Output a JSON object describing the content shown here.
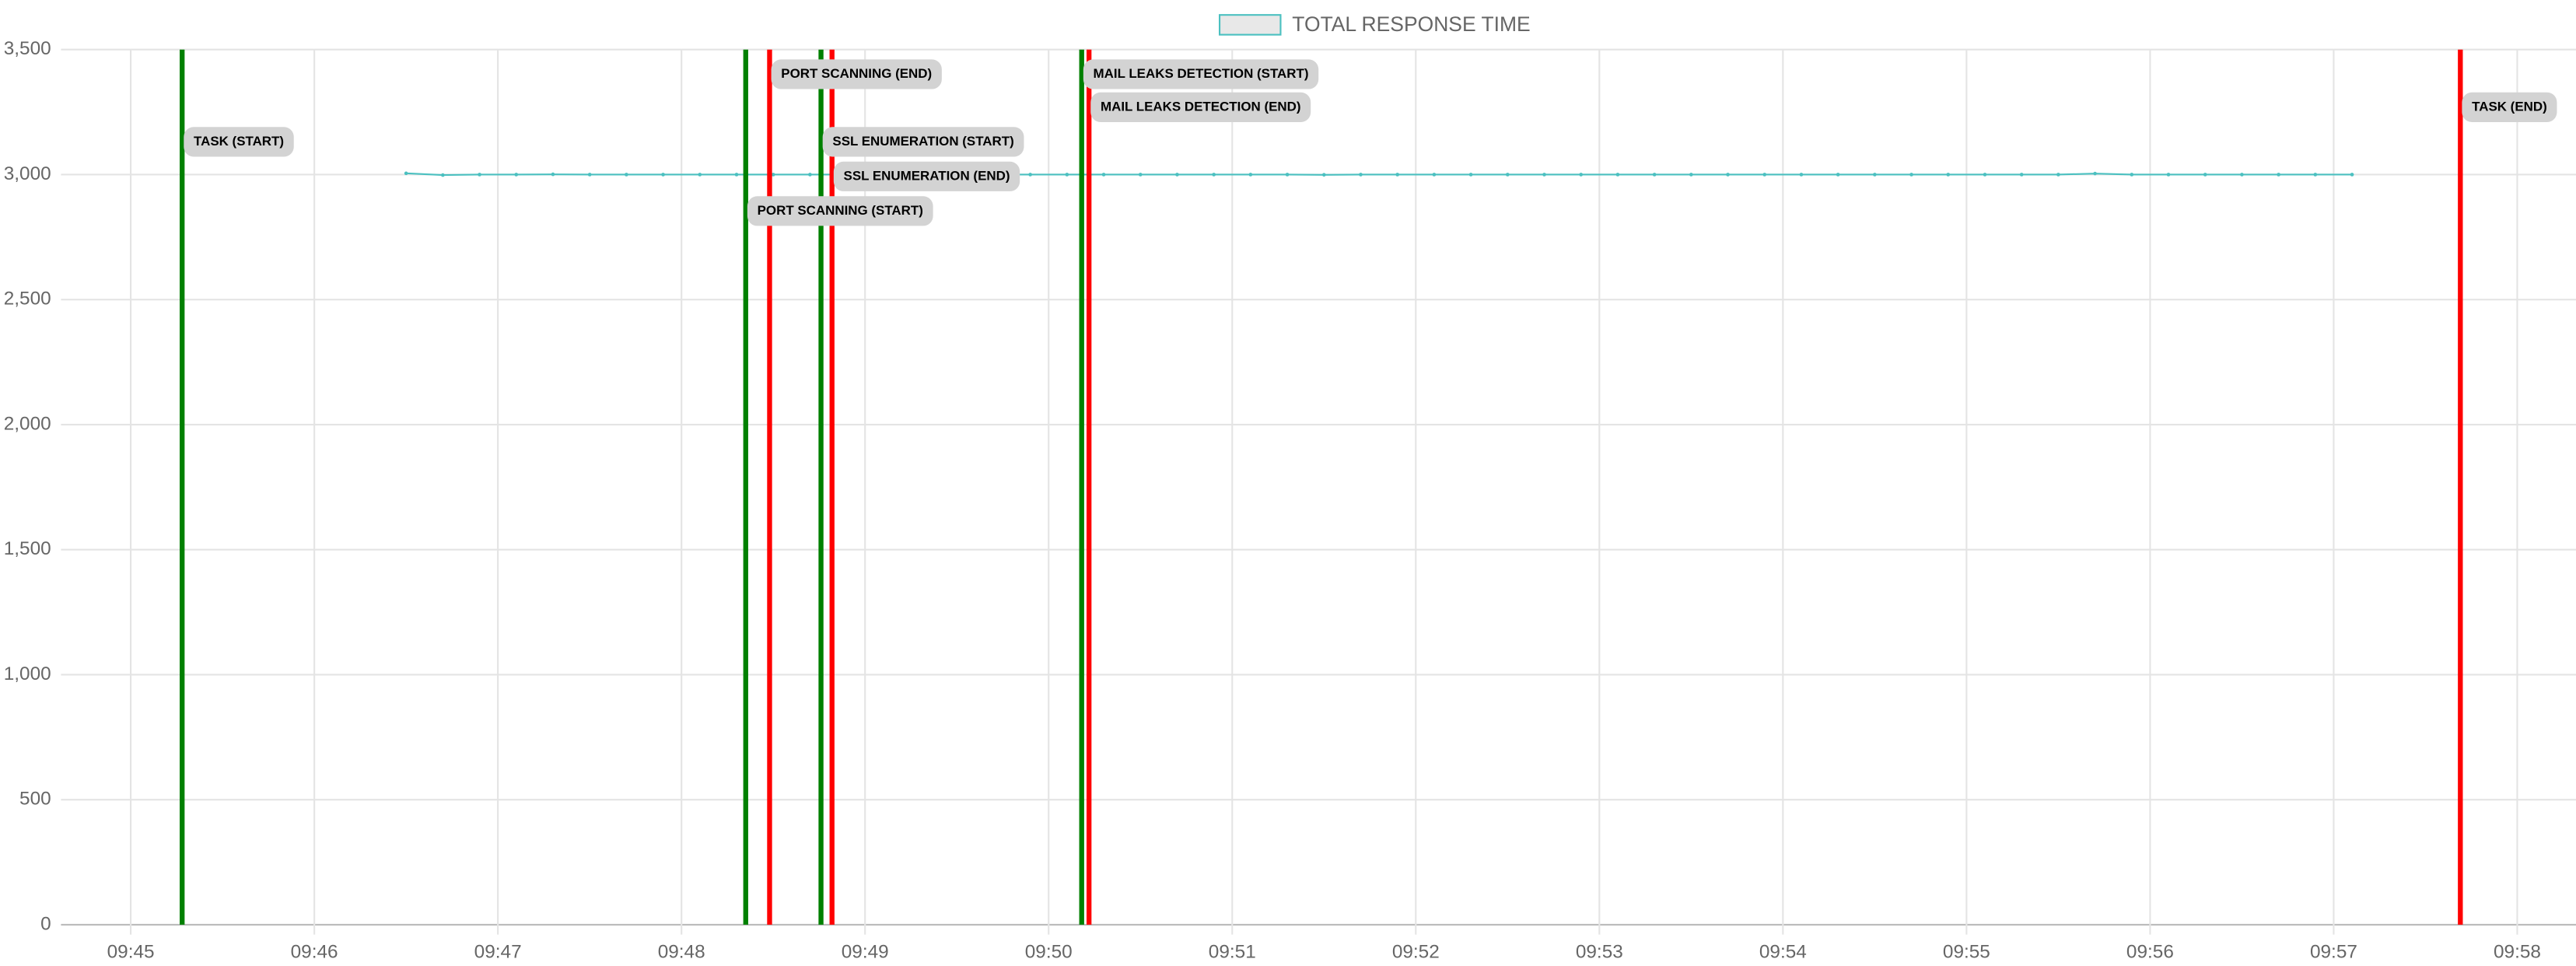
{
  "chart_data": {
    "type": "line",
    "x": [
      586.5,
      586.7,
      586.9,
      587.1,
      587.3,
      587.5,
      587.7,
      587.9,
      588.1,
      588.3,
      588.5,
      588.7,
      588.9,
      589.1,
      589.3,
      589.5,
      589.7,
      589.9,
      590.1,
      590.3,
      590.5,
      590.7,
      590.9,
      591.1,
      591.3,
      591.5,
      591.7,
      591.9,
      592.1,
      592.3,
      592.5,
      592.7,
      592.9,
      593.1,
      593.3,
      593.5,
      593.7,
      593.9,
      594.1,
      594.3,
      594.5,
      594.7,
      594.9,
      595.1,
      595.3,
      595.5,
      595.7,
      595.9,
      596.1,
      596.3,
      596.5,
      596.7,
      596.9,
      597.1
    ],
    "series": [
      {
        "name": "TOTAL RESPONSE TIME",
        "color": "#4bc0c0",
        "values": [
          3005,
          2998,
          3000,
          3000,
          3001,
          3000,
          3000,
          3000,
          3000,
          3000,
          3000,
          3000,
          3000,
          3000,
          3000,
          3000,
          3000,
          3000,
          3000,
          3000,
          3000,
          3000,
          3000,
          3000,
          3000,
          2999,
          3000,
          3000,
          3000,
          3000,
          3000,
          3000,
          3000,
          3000,
          3000,
          3000,
          3000,
          3000,
          3000,
          3000,
          3000,
          3000,
          3000,
          3000,
          3000,
          3000,
          3004,
          3000,
          3000,
          3000,
          3000,
          3000,
          3000,
          3000
        ]
      }
    ],
    "xlim": [
      584.62,
      598.32
    ],
    "xticks": [
      {
        "value": 585,
        "label": "09:45"
      },
      {
        "value": 586,
        "label": "09:46"
      },
      {
        "value": 587,
        "label": "09:47"
      },
      {
        "value": 588,
        "label": "09:48"
      },
      {
        "value": 589,
        "label": "09:49"
      },
      {
        "value": 590,
        "label": "09:50"
      },
      {
        "value": 591,
        "label": "09:51"
      },
      {
        "value": 592,
        "label": "09:52"
      },
      {
        "value": 593,
        "label": "09:53"
      },
      {
        "value": 594,
        "label": "09:54"
      },
      {
        "value": 595,
        "label": "09:55"
      },
      {
        "value": 596,
        "label": "09:56"
      },
      {
        "value": 597,
        "label": "09:57"
      },
      {
        "value": 598,
        "label": "09:58"
      }
    ],
    "ylim": [
      0,
      3500
    ],
    "yticks": [
      0,
      500,
      {
        "value": 1000,
        "label": "1,000"
      },
      {
        "value": 1500,
        "label": "1,500"
      },
      {
        "value": 2000,
        "label": "2,000"
      },
      {
        "value": 2500,
        "label": "2,500"
      },
      {
        "value": 3000,
        "label": "3,000"
      },
      {
        "value": 3500,
        "label": "3,500"
      }
    ],
    "grid": true,
    "events": [
      {
        "label": "TASK (START)",
        "time": 585.28,
        "color": "#008000"
      },
      {
        "label": "PORT SCANNING (START)",
        "time": 588.35,
        "color": "#008000"
      },
      {
        "label": "PORT SCANNING (END)",
        "time": 588.48,
        "color": "#ff0000"
      },
      {
        "label": "SSL ENUMERATION (START)",
        "time": 588.76,
        "color": "#008000"
      },
      {
        "label": "SSL ENUMERATION (END)",
        "time": 588.82,
        "color": "#ff0000"
      },
      {
        "label": "MAIL LEAKS DETECTION (START)",
        "time": 590.18,
        "color": "#008000"
      },
      {
        "label": "MAIL LEAKS DETECTION (END)",
        "time": 590.22,
        "color": "#ff0000"
      },
      {
        "label": "TASK (END)",
        "time": 597.69,
        "color": "#ff0000"
      }
    ]
  }
}
